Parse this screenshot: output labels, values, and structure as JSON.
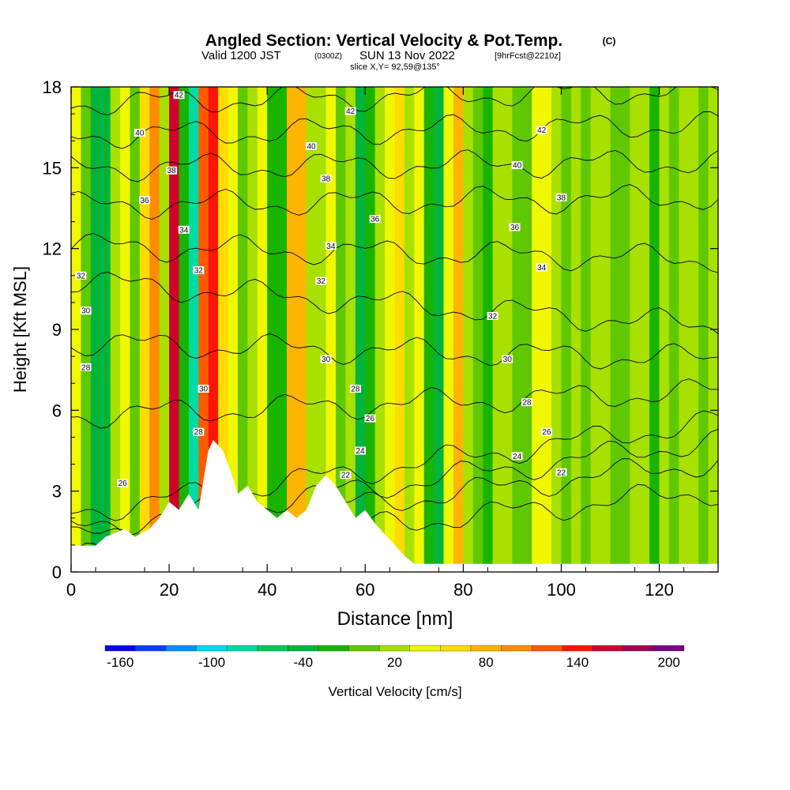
{
  "title": {
    "main": "Angled Section: Vertical Velocity & Pot.Temp.",
    "main_unit": "(C)",
    "line2_a": "Valid 1200 JST",
    "line2_b": "(0300Z)",
    "line2_c": "SUN 13 Nov 2022",
    "line2_d": "[9hrFcst@2210z]",
    "line3": "slice X,Y= 92,59@135°"
  },
  "chart_data": {
    "type": "heatmap",
    "xlabel": "Distance [nm]",
    "ylabel": "Height [Kft MSL]",
    "xlim": [
      0,
      132
    ],
    "ylim": [
      0,
      18
    ],
    "x_ticks": [
      0,
      20,
      40,
      60,
      80,
      100,
      120
    ],
    "y_ticks": [
      0,
      3,
      6,
      9,
      12,
      15,
      18
    ],
    "colorbar": {
      "label": "Vertical Velocity [cm/s]",
      "range": [
        -170,
        210
      ],
      "tick_values": [
        -160,
        -100,
        -40,
        20,
        80,
        140,
        200
      ],
      "tick_labels": [
        "-160",
        "-100",
        "-40",
        "20",
        "80",
        "140",
        "200"
      ],
      "colors": [
        "#0a00f0",
        "#0040ff",
        "#0090ff",
        "#00d8f0",
        "#00dca0",
        "#00c858",
        "#00b43c",
        "#18b400",
        "#60c800",
        "#a8e000",
        "#f0f800",
        "#ffdc00",
        "#ffb400",
        "#ff8c00",
        "#ff5a00",
        "#ff1400",
        "#d0002a",
        "#a00050",
        "#7a0088"
      ]
    },
    "columns": {
      "comment": "dominant vertical velocity (cm/s) by distance band; columns are bands of equal width across 0-132 nm",
      "values": [
        30,
        -10,
        -40,
        -40,
        20,
        40,
        -10,
        60,
        100,
        20,
        150,
        -20,
        -90,
        110,
        140,
        60,
        30,
        -10,
        20,
        30,
        -20,
        -30,
        80,
        70,
        20,
        10,
        30,
        -10,
        20,
        -40,
        -20,
        10,
        40,
        50,
        20,
        30,
        -20,
        -40,
        30,
        70,
        20,
        0,
        -30,
        10,
        20,
        -10,
        0,
        30,
        40,
        10,
        -10,
        20,
        0,
        10,
        20,
        -10,
        0,
        10,
        20,
        -20,
        10,
        0,
        20,
        10,
        0,
        20
      ]
    },
    "theta_contours": {
      "comment": "potential temperature isentropes (C); baseline height (kft) at left/right edge",
      "levels": [
        20,
        22,
        24,
        26,
        28,
        30,
        32,
        34,
        36,
        38,
        40,
        42
      ],
      "left_height_kft": [
        0.6,
        1.2,
        1.6,
        2.2,
        5.8,
        8.5,
        10.8,
        12.1,
        13.6,
        15.0,
        16.2,
        17.4
      ],
      "right_height_kft": [
        3.0,
        4.1,
        4.9,
        5.6,
        6.7,
        7.9,
        9.1,
        11.6,
        13.9,
        15.2,
        16.6,
        17.9
      ],
      "labels": [
        {
          "text": "42",
          "x": 22,
          "y": 17.7
        },
        {
          "text": "40",
          "x": 14,
          "y": 16.3
        },
        {
          "text": "38",
          "x": 20.5,
          "y": 14.9
        },
        {
          "text": "36",
          "x": 15,
          "y": 13.8
        },
        {
          "text": "34",
          "x": 23,
          "y": 12.7
        },
        {
          "text": "32",
          "x": 26,
          "y": 11.2
        },
        {
          "text": "32",
          "x": 2,
          "y": 11.0
        },
        {
          "text": "30",
          "x": 3,
          "y": 9.7
        },
        {
          "text": "28",
          "x": 3,
          "y": 7.6
        },
        {
          "text": "30",
          "x": 27,
          "y": 6.8
        },
        {
          "text": "28",
          "x": 26,
          "y": 5.2
        },
        {
          "text": "26",
          "x": 10.5,
          "y": 3.3
        },
        {
          "text": "42",
          "x": 57,
          "y": 17.1
        },
        {
          "text": "40",
          "x": 49,
          "y": 15.8
        },
        {
          "text": "38",
          "x": 52,
          "y": 14.6
        },
        {
          "text": "36",
          "x": 62,
          "y": 13.1
        },
        {
          "text": "34",
          "x": 53,
          "y": 12.1
        },
        {
          "text": "32",
          "x": 51,
          "y": 10.8
        },
        {
          "text": "30",
          "x": 52,
          "y": 7.9
        },
        {
          "text": "28",
          "x": 58,
          "y": 6.8
        },
        {
          "text": "26",
          "x": 61,
          "y": 5.7
        },
        {
          "text": "24",
          "x": 59,
          "y": 4.5
        },
        {
          "text": "22",
          "x": 56,
          "y": 3.6
        },
        {
          "text": "42",
          "x": 96,
          "y": 16.4
        },
        {
          "text": "40",
          "x": 91,
          "y": 15.1
        },
        {
          "text": "38",
          "x": 100,
          "y": 13.9
        },
        {
          "text": "36",
          "x": 90.5,
          "y": 12.8
        },
        {
          "text": "34",
          "x": 96,
          "y": 11.3
        },
        {
          "text": "32",
          "x": 86,
          "y": 9.5
        },
        {
          "text": "30",
          "x": 89,
          "y": 7.9
        },
        {
          "text": "28",
          "x": 93,
          "y": 6.3
        },
        {
          "text": "26",
          "x": 97,
          "y": 5.2
        },
        {
          "text": "24",
          "x": 91,
          "y": 4.3
        },
        {
          "text": "22",
          "x": 100,
          "y": 3.7
        }
      ]
    },
    "terrain_kft": [
      [
        0,
        0.98
      ],
      [
        5,
        0.98
      ],
      [
        7,
        1.3
      ],
      [
        11,
        1.6
      ],
      [
        13,
        1.3
      ],
      [
        16,
        1.6
      ],
      [
        18,
        2.0
      ],
      [
        20,
        2.6
      ],
      [
        22,
        2.3
      ],
      [
        24,
        2.9
      ],
      [
        26,
        2.3
      ],
      [
        28,
        4.5
      ],
      [
        29,
        4.9
      ],
      [
        31,
        4.5
      ],
      [
        33,
        3.5
      ],
      [
        34,
        2.9
      ],
      [
        36,
        3.2
      ],
      [
        38,
        2.6
      ],
      [
        40,
        2.3
      ],
      [
        42,
        2.0
      ],
      [
        44,
        2.3
      ],
      [
        46,
        2.0
      ],
      [
        48,
        2.3
      ],
      [
        50,
        3.2
      ],
      [
        52,
        3.6
      ],
      [
        54,
        3.2
      ],
      [
        56,
        2.6
      ],
      [
        58,
        2.0
      ],
      [
        60,
        2.3
      ],
      [
        62,
        1.8
      ],
      [
        64,
        1.4
      ],
      [
        66,
        1.0
      ],
      [
        68,
        0.6
      ],
      [
        70,
        0.3
      ],
      [
        80,
        0.3
      ],
      [
        90,
        0.3
      ],
      [
        100,
        0.3
      ],
      [
        110,
        0.3
      ],
      [
        120,
        0.3
      ],
      [
        132,
        0.3
      ]
    ],
    "grid": false
  }
}
